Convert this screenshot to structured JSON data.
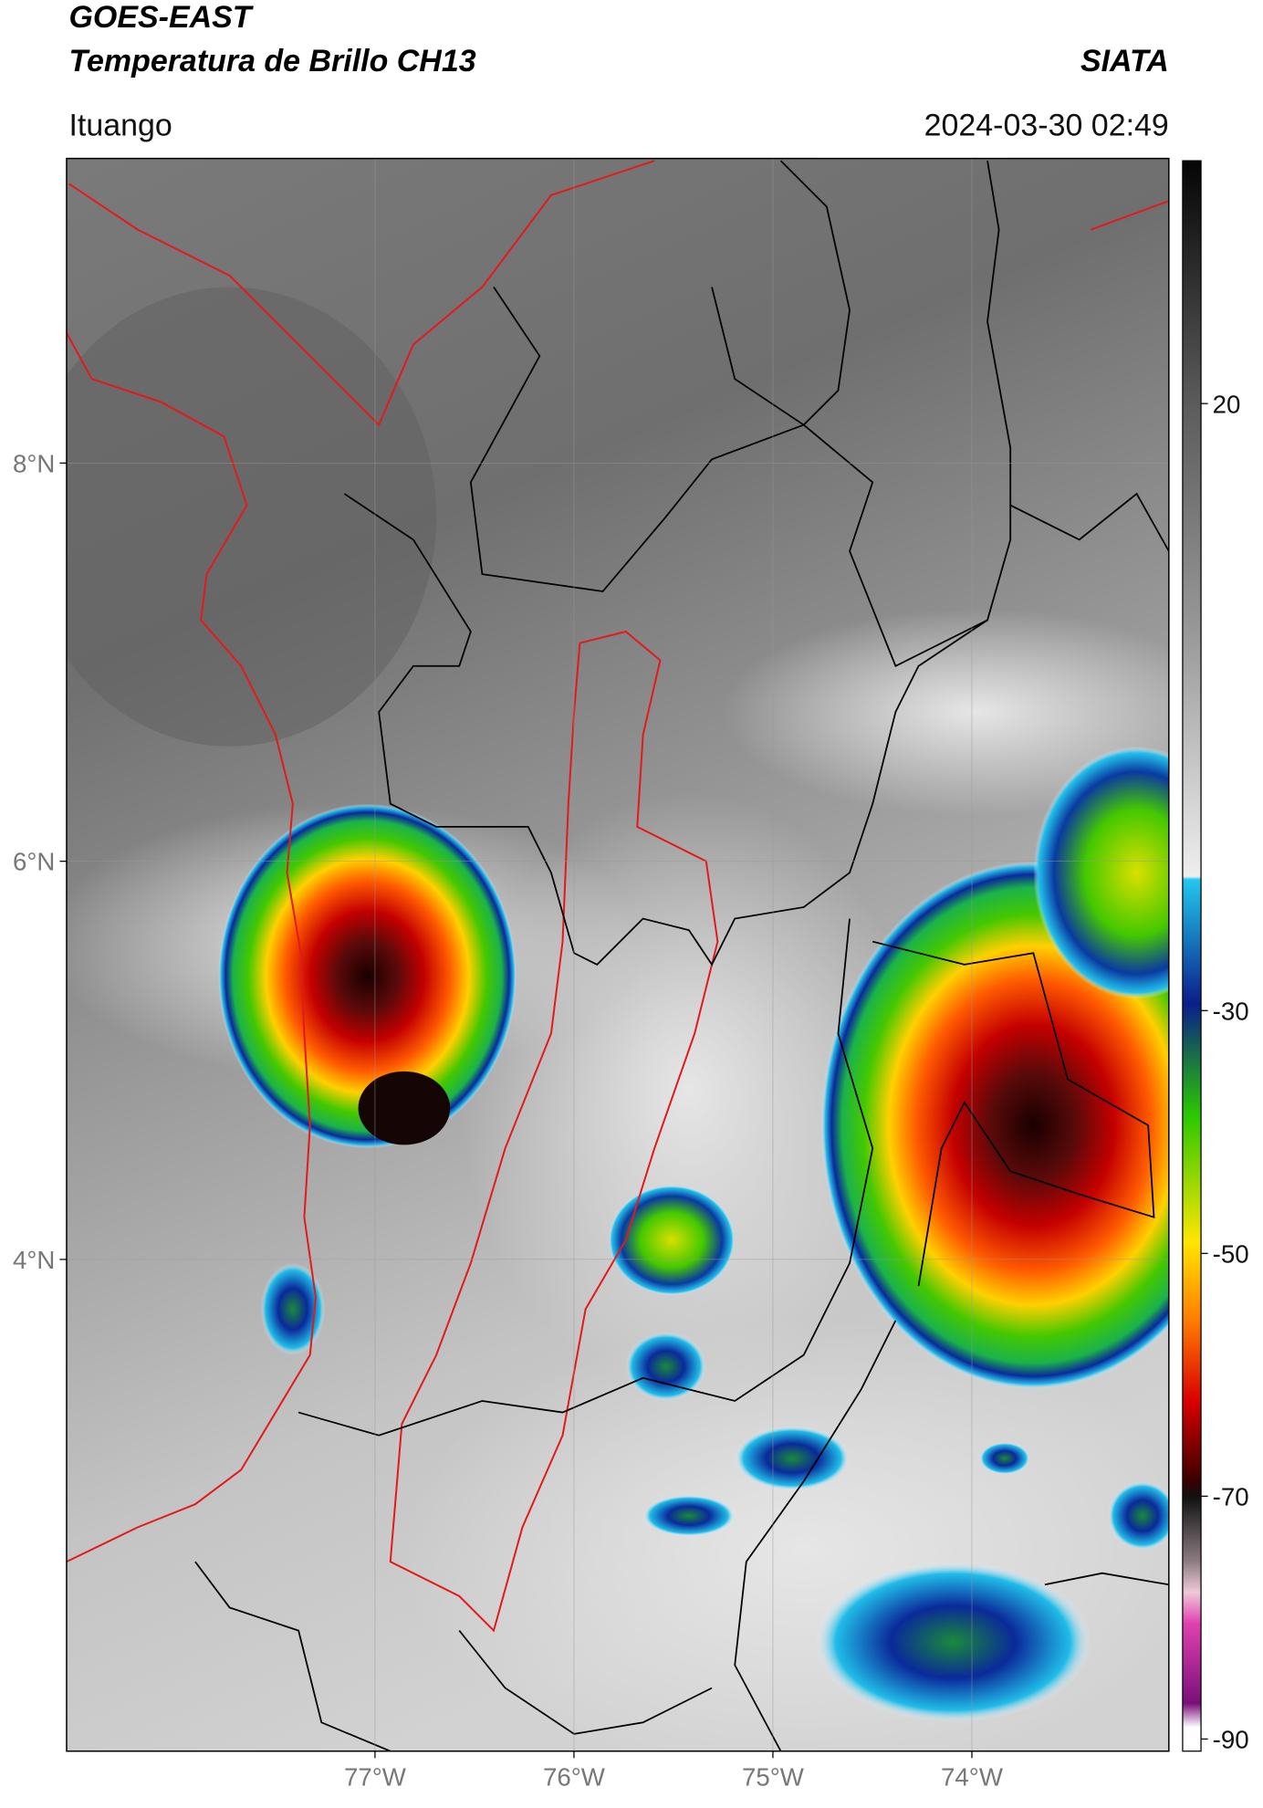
{
  "header": {
    "satellite": "GOES-EAST",
    "product": "Temperatura de Brillo CH13",
    "organization": "SIATA",
    "location": "Ituango",
    "timestamp": "2024-03-30 02:49"
  },
  "map": {
    "xlim": [
      -78.55,
      -73.01
    ],
    "ylim": [
      1.53,
      9.53
    ],
    "xticks": [
      {
        "value": -77,
        "label": "77°W"
      },
      {
        "value": -76,
        "label": "76°W"
      },
      {
        "value": -75,
        "label": "75°W"
      },
      {
        "value": -74,
        "label": "74°W"
      }
    ],
    "yticks": [
      {
        "value": 8,
        "label": "8°N"
      },
      {
        "value": 6,
        "label": "6°N"
      },
      {
        "value": 4,
        "label": "4°N"
      }
    ]
  },
  "colorbar": {
    "range": [
      -91,
      40
    ],
    "ticks": [
      20,
      -30,
      -50,
      -70,
      -90
    ]
  }
}
